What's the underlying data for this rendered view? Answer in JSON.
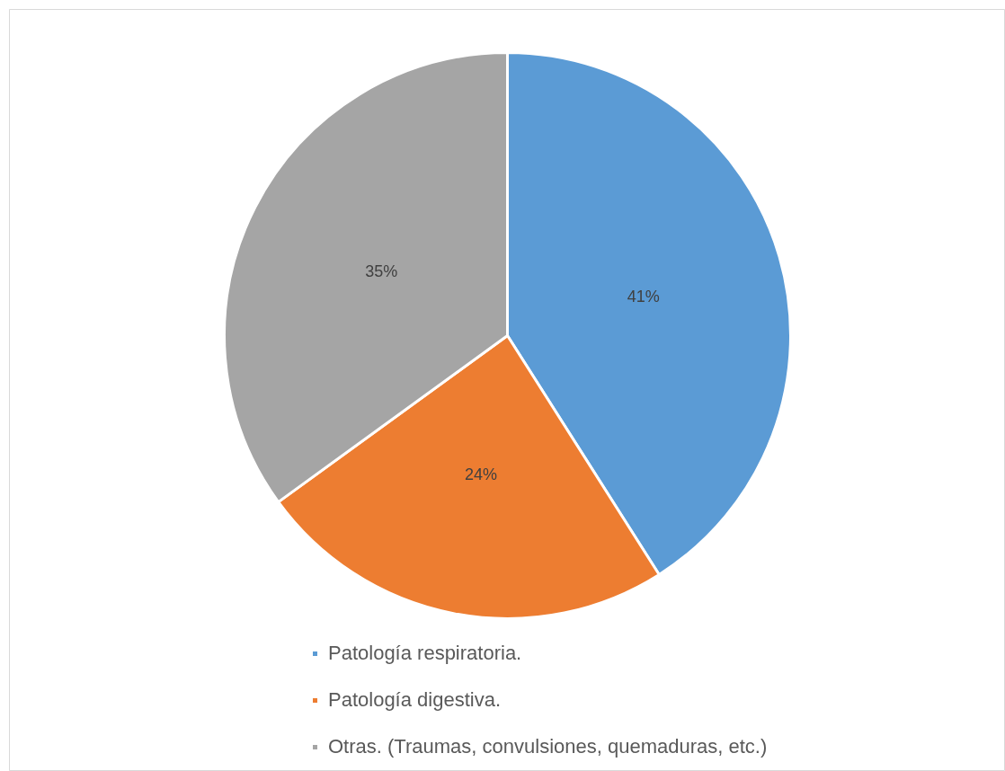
{
  "chart_data": {
    "type": "pie",
    "categories": [
      "Patología respiratoria.",
      "Patología digestiva.",
      "Otras. (Traumas, convulsiones, quemaduras, etc.)"
    ],
    "values": [
      41,
      24,
      35
    ],
    "colors": [
      "#5b9bd5",
      "#ed7d31",
      "#a5a5a5"
    ],
    "value_labels": [
      "41%",
      "24%",
      "35%"
    ],
    "legend": "bottom"
  }
}
